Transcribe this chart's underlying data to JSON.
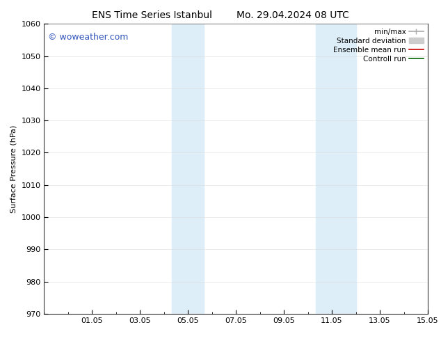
{
  "title_left": "ENS Time Series Istanbul",
  "title_right": "Mo. 29.04.2024 08 UTC",
  "ylabel": "Surface Pressure (hPa)",
  "ylim": [
    970,
    1060
  ],
  "yticks": [
    970,
    980,
    990,
    1000,
    1010,
    1020,
    1030,
    1040,
    1050,
    1060
  ],
  "xlim_start": 29.0,
  "xlim_end": 45.0,
  "xtick_labels": [
    "01.05",
    "03.05",
    "05.05",
    "07.05",
    "09.05",
    "11.05",
    "13.05",
    "15.05"
  ],
  "xtick_positions": [
    31,
    33,
    35,
    37,
    39,
    41,
    43,
    45
  ],
  "shaded_regions": [
    {
      "x_start": 34.33,
      "x_end": 35.67
    },
    {
      "x_start": 40.33,
      "x_end": 42.0
    }
  ],
  "shaded_color": "#ddeef8",
  "watermark_text": "© woweather.com",
  "watermark_color": "#3355bb",
  "background_color": "#ffffff",
  "plot_bg_color": "#ffffff",
  "legend_items": [
    {
      "label": "min/max",
      "color": "#aaaaaa",
      "linestyle": "-",
      "linewidth": 1.2
    },
    {
      "label": "Standard deviation",
      "color": "#cccccc",
      "linestyle": "-",
      "linewidth": 5
    },
    {
      "label": "Ensemble mean run",
      "color": "#cc0000",
      "linestyle": "-",
      "linewidth": 1.2
    },
    {
      "label": "Controll run",
      "color": "#006600",
      "linestyle": "-",
      "linewidth": 1.2
    }
  ],
  "font_size_title": 10,
  "font_size_axis": 8,
  "font_size_tick": 8,
  "font_size_legend": 7.5,
  "font_size_watermark": 9
}
